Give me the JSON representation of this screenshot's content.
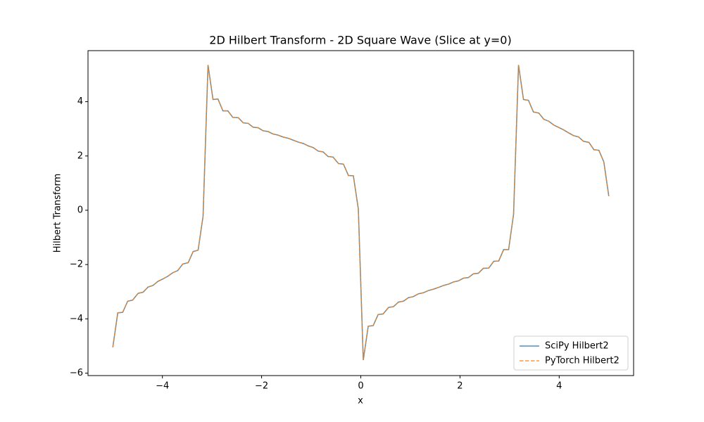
{
  "chart_data": {
    "type": "line",
    "title": "2D Hilbert Transform - 2D Square Wave (Slice at y=0)",
    "x_label": "x",
    "y_label": "Hilbert Transform",
    "x": [
      -5.0,
      -4.9,
      -4.8,
      -4.7,
      -4.6,
      -4.49,
      -4.39,
      -4.29,
      -4.19,
      -4.09,
      -3.99,
      -3.89,
      -3.79,
      -3.69,
      -3.59,
      -3.48,
      -3.38,
      -3.28,
      -3.18,
      -3.08,
      -2.98,
      -2.88,
      -2.78,
      -2.68,
      -2.58,
      -2.47,
      -2.37,
      -2.27,
      -2.17,
      -2.07,
      -1.97,
      -1.87,
      -1.77,
      -1.67,
      -1.57,
      -1.46,
      -1.36,
      -1.26,
      -1.16,
      -1.06,
      -0.96,
      -0.86,
      -0.76,
      -0.66,
      -0.56,
      -0.45,
      -0.35,
      -0.25,
      -0.15,
      -0.05,
      0.05,
      0.15,
      0.25,
      0.35,
      0.45,
      0.56,
      0.66,
      0.76,
      0.86,
      0.96,
      1.06,
      1.16,
      1.26,
      1.36,
      1.46,
      1.57,
      1.67,
      1.77,
      1.87,
      1.97,
      2.07,
      2.17,
      2.27,
      2.37,
      2.47,
      2.58,
      2.68,
      2.78,
      2.88,
      2.98,
      3.08,
      3.18,
      3.28,
      3.38,
      3.48,
      3.59,
      3.69,
      3.79,
      3.89,
      3.99,
      4.09,
      4.19,
      4.29,
      4.39,
      4.49,
      4.6,
      4.7,
      4.8,
      4.9,
      5.0
    ],
    "series": [
      {
        "name": "SciPy Hilbert2",
        "color": "#1f77b4",
        "linestyle": "solid",
        "values": [
          -5.05,
          -3.78,
          -3.76,
          -3.35,
          -3.31,
          -3.06,
          -3.02,
          -2.83,
          -2.77,
          -2.62,
          -2.53,
          -2.43,
          -2.3,
          -2.22,
          -1.98,
          -1.93,
          -1.52,
          -1.47,
          -0.22,
          5.35,
          4.08,
          4.1,
          3.66,
          3.66,
          3.42,
          3.41,
          3.22,
          3.2,
          3.06,
          3.04,
          2.93,
          2.9,
          2.81,
          2.77,
          2.7,
          2.65,
          2.58,
          2.51,
          2.46,
          2.37,
          2.31,
          2.18,
          2.15,
          1.98,
          1.96,
          1.72,
          1.7,
          1.28,
          1.27,
          0.05,
          -5.52,
          -4.27,
          -4.25,
          -3.84,
          -3.82,
          -3.58,
          -3.55,
          -3.38,
          -3.35,
          -3.22,
          -3.18,
          -3.08,
          -3.04,
          -2.96,
          -2.91,
          -2.84,
          -2.77,
          -2.72,
          -2.64,
          -2.6,
          -2.5,
          -2.48,
          -2.34,
          -2.32,
          -2.14,
          -2.13,
          -1.88,
          -1.87,
          -1.45,
          -1.45,
          -0.15,
          5.35,
          4.08,
          4.05,
          3.62,
          3.58,
          3.35,
          3.28,
          3.14,
          3.05,
          2.96,
          2.85,
          2.75,
          2.7,
          2.54,
          2.5,
          2.23,
          2.21,
          1.78,
          0.52
        ]
      },
      {
        "name": "PyTorch Hilbert2",
        "color": "#ff7f0e",
        "linestyle": "dashed",
        "values": [
          -5.05,
          -3.78,
          -3.76,
          -3.35,
          -3.31,
          -3.06,
          -3.02,
          -2.83,
          -2.77,
          -2.62,
          -2.53,
          -2.43,
          -2.3,
          -2.22,
          -1.98,
          -1.93,
          -1.52,
          -1.47,
          -0.22,
          5.35,
          4.08,
          4.1,
          3.66,
          3.66,
          3.42,
          3.41,
          3.22,
          3.2,
          3.06,
          3.04,
          2.93,
          2.9,
          2.81,
          2.77,
          2.7,
          2.65,
          2.58,
          2.51,
          2.46,
          2.37,
          2.31,
          2.18,
          2.15,
          1.98,
          1.96,
          1.72,
          1.7,
          1.28,
          1.27,
          0.05,
          -5.52,
          -4.27,
          -4.25,
          -3.84,
          -3.82,
          -3.58,
          -3.55,
          -3.38,
          -3.35,
          -3.22,
          -3.18,
          -3.08,
          -3.04,
          -2.96,
          -2.91,
          -2.84,
          -2.77,
          -2.72,
          -2.64,
          -2.6,
          -2.5,
          -2.48,
          -2.34,
          -2.32,
          -2.14,
          -2.13,
          -1.88,
          -1.87,
          -1.45,
          -1.45,
          -0.15,
          5.35,
          4.08,
          4.05,
          3.62,
          3.58,
          3.35,
          3.28,
          3.14,
          3.05,
          2.96,
          2.85,
          2.75,
          2.7,
          2.54,
          2.5,
          2.23,
          2.21,
          1.78,
          0.52
        ]
      }
    ],
    "xlim": [
      -5.5,
      5.5
    ],
    "xticks": [
      {
        "value": -4,
        "label": "−4"
      },
      {
        "value": -2,
        "label": "−2"
      },
      0,
      2,
      4
    ],
    "ylim": [
      -6.09,
      5.88
    ],
    "yticks": [
      {
        "value": -6,
        "label": "−6"
      },
      {
        "value": -4,
        "label": "−4"
      },
      {
        "value": -2,
        "label": "−2"
      },
      0,
      2,
      4
    ],
    "grid": false,
    "legend": "lower right"
  }
}
